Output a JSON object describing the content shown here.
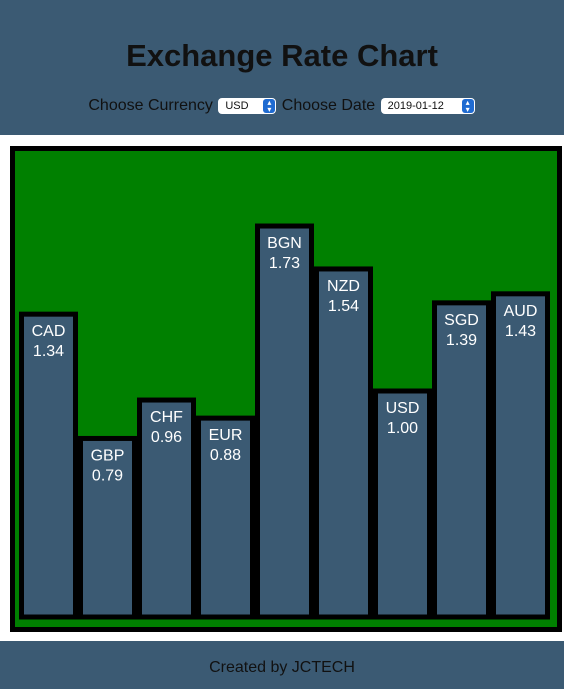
{
  "header": {
    "title": "Exchange Rate Chart",
    "currency_label": "Choose Currency",
    "currency_value": "USD",
    "date_label": "Choose Date",
    "date_value": "2019-01-12"
  },
  "footer": {
    "text": "Created by JCTECH"
  },
  "colors": {
    "header_bg": "#3b5a73",
    "plot_bg": "#008000",
    "bar_fill": "#3b5a73",
    "bar_stroke": "#000000",
    "label_text": "#ffffff"
  },
  "chart_data": {
    "type": "bar",
    "title": "",
    "xlabel": "",
    "ylabel": "",
    "categories": [
      "CAD",
      "GBP",
      "CHF",
      "EUR",
      "BGN",
      "NZD",
      "USD",
      "SGD",
      "AUD"
    ],
    "values": [
      1.34,
      0.79,
      0.96,
      0.88,
      1.73,
      1.54,
      1.0,
      1.39,
      1.43
    ],
    "value_labels": [
      "1.34",
      "0.79",
      "0.96",
      "0.88",
      "1.73",
      "1.54",
      "1.00",
      "1.39",
      "1.43"
    ],
    "grid": false,
    "legend": "none"
  }
}
